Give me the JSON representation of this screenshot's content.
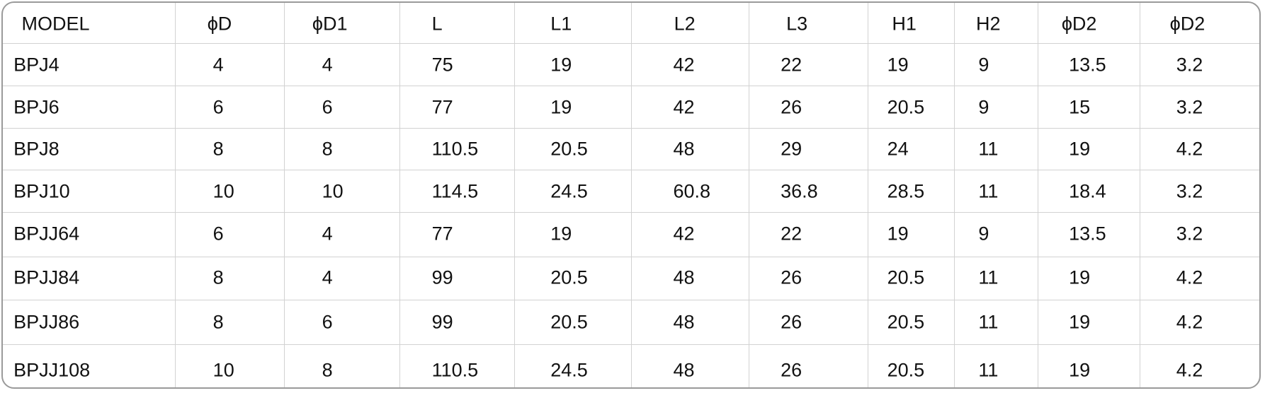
{
  "table": {
    "header": [
      "MODEL",
      "ϕD",
      "ϕD1",
      "L",
      "L1",
      "L2",
      "L3",
      "H1",
      "H2",
      "ϕD2",
      "ϕD2"
    ],
    "rows": [
      [
        "BPJ4",
        "4",
        "4",
        "75",
        "19",
        "42",
        "22",
        "19",
        "9",
        "13.5",
        "3.2"
      ],
      [
        "BPJ6",
        "6",
        "6",
        "77",
        "19",
        "42",
        "26",
        "20.5",
        "9",
        "15",
        "3.2"
      ],
      [
        "BPJ8",
        "8",
        "8",
        "110.5",
        "20.5",
        "48",
        "29",
        "24",
        "11",
        "19",
        "4.2"
      ],
      [
        "BPJ10",
        "10",
        "10",
        "114.5",
        "24.5",
        "60.8",
        "36.8",
        "28.5",
        "11",
        "18.4",
        "3.2"
      ],
      [
        "BPJJ64",
        "6",
        "4",
        "77",
        "19",
        "42",
        "22",
        "19",
        "9",
        "13.5",
        "3.2"
      ],
      [
        "BPJJ84",
        "8",
        "4",
        "99",
        "20.5",
        "48",
        "26",
        "20.5",
        "11",
        "19",
        "4.2"
      ],
      [
        "BPJJ86",
        "8",
        "6",
        "99",
        "20.5",
        "48",
        "26",
        "20.5",
        "11",
        "19",
        "4.2"
      ],
      [
        "BPJJ108",
        "10",
        "8",
        "110.5",
        "24.5",
        "48",
        "26",
        "20.5",
        "11",
        "19",
        "4.2"
      ]
    ]
  }
}
